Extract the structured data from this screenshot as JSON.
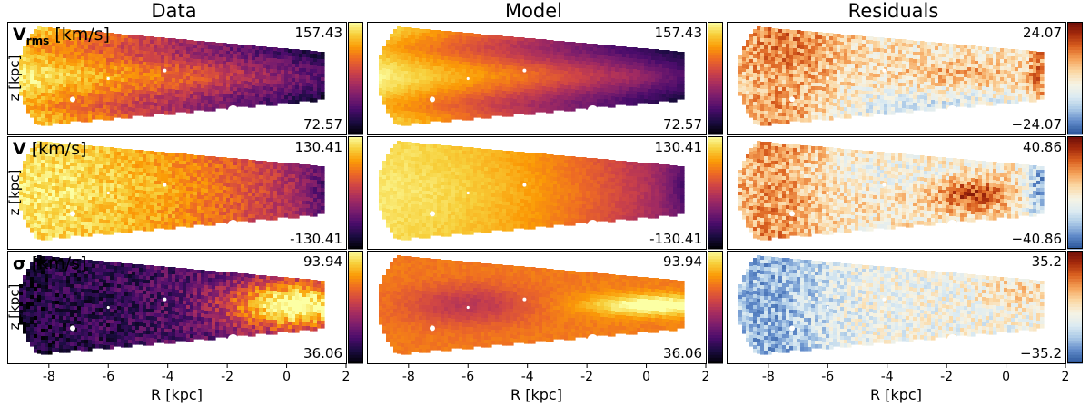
{
  "colors": {
    "inferno": [
      "#000004",
      "#1b0c41",
      "#4a0c6b",
      "#781c6d",
      "#a52c60",
      "#cf4446",
      "#ed6925",
      "#fb9b06",
      "#f7d13d",
      "#fcffa4"
    ],
    "diverging": [
      "#2a5599",
      "#5e88c8",
      "#a9c8e6",
      "#dcebf2",
      "#f6f3e4",
      "#fbd9a6",
      "#f5a35a",
      "#dc6321",
      "#a52a0c",
      "#6b0d07"
    ],
    "mask": "#ffffff"
  },
  "chart_data": {
    "type": "heatmap",
    "columns": [
      "Data",
      "Model",
      "Residuals"
    ],
    "rows": [
      {
        "name_main": "V",
        "name_sub": "rms",
        "unit": "[km/s]",
        "ranges": [
          {
            "top": "157.43",
            "bottom": "72.57"
          },
          {
            "top": "157.43",
            "bottom": "72.57"
          },
          {
            "top": "24.07",
            "bottom": "−24.07"
          }
        ]
      },
      {
        "name_main": "V",
        "name_sub": "",
        "unit": "[km/s]",
        "ranges": [
          {
            "top": "130.41",
            "bottom": "-130.41"
          },
          {
            "top": "130.41",
            "bottom": "-130.41"
          },
          {
            "top": "40.86",
            "bottom": "−40.86"
          }
        ]
      },
      {
        "name_main": "σ",
        "name_sub": "",
        "unit": "[km/s]",
        "ranges": [
          {
            "top": "93.94",
            "bottom": "36.06"
          },
          {
            "top": "93.94",
            "bottom": "36.06"
          },
          {
            "top": "35.2",
            "bottom": "−35.2"
          }
        ]
      }
    ],
    "colormaps": [
      "inferno",
      "inferno",
      "diverging"
    ],
    "ylabel": "z [kpc]",
    "xlabel": "R [kpc]",
    "xlim": [
      -9.4,
      2
    ],
    "xticks": [
      "-8",
      "-6",
      "-4",
      "-2",
      "0",
      "2"
    ],
    "xtick_values": [
      -8,
      -6,
      -4,
      -2,
      0,
      2
    ]
  }
}
